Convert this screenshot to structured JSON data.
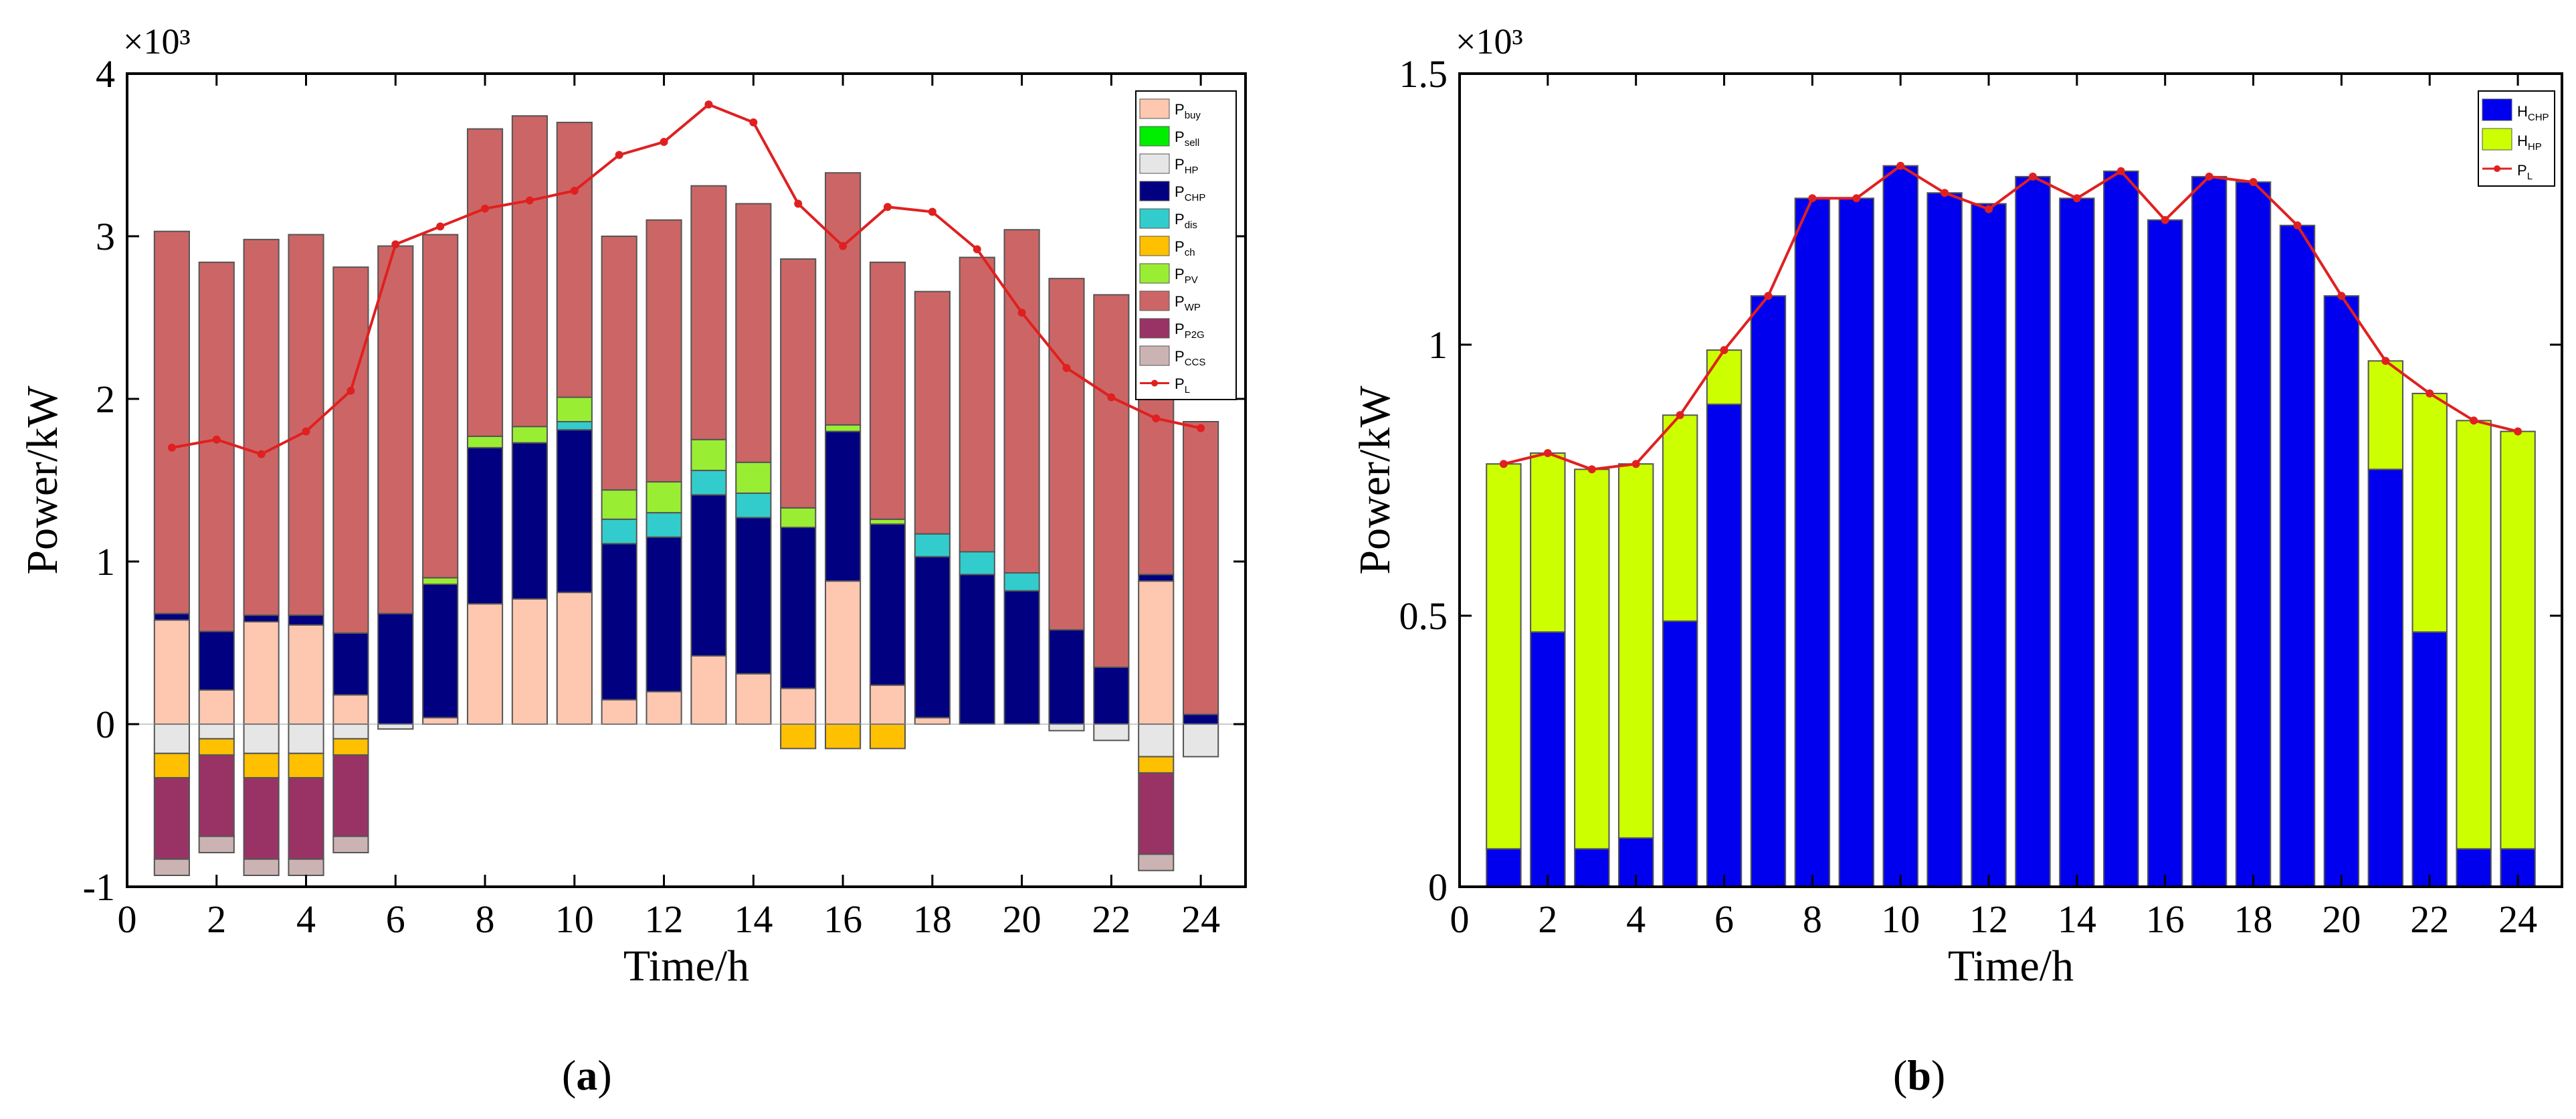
{
  "captions": [
    "(a)",
    "(b)"
  ],
  "caption_letters": [
    "a",
    "b"
  ],
  "chart_data": [
    {
      "type": "bar",
      "id": "a",
      "stacked": true,
      "title": "",
      "xlabel": "Time/h",
      "ylabel": "Power/kW",
      "scale_note": "×10³",
      "xlim": [
        0,
        25
      ],
      "ylim": [
        -1,
        4
      ],
      "xticks": [
        0,
        2,
        4,
        6,
        8,
        10,
        12,
        14,
        16,
        18,
        20,
        22,
        24
      ],
      "yticks": [
        -1,
        0,
        1,
        2,
        3,
        4
      ],
      "x": [
        1,
        2,
        3,
        4,
        5,
        6,
        7,
        8,
        9,
        10,
        11,
        12,
        13,
        14,
        15,
        16,
        17,
        18,
        19,
        20,
        21,
        22,
        23,
        24
      ],
      "legend_position": "top-right",
      "series": [
        {
          "name": "P",
          "sub": "buy",
          "color": "#FDC7B0",
          "values": [
            0.64,
            0.21,
            0.63,
            0.61,
            0.18,
            0,
            0.04,
            0.74,
            0.77,
            0.81,
            0.15,
            0.2,
            0.42,
            0.31,
            0.22,
            0.88,
            0.24,
            0.04,
            0,
            0,
            0,
            0,
            0.88,
            0
          ]
        },
        {
          "name": "P",
          "sub": "sell",
          "color": "#00EE00",
          "values": [
            0,
            0,
            0,
            0,
            0,
            0,
            0,
            0,
            0,
            0,
            0,
            0,
            0,
            0,
            0,
            0,
            0,
            0,
            0,
            0,
            0,
            0,
            0,
            0
          ]
        },
        {
          "name": "P",
          "sub": "HP",
          "color": "#E6E6E6",
          "values": [
            -0.18,
            -0.09,
            -0.18,
            -0.18,
            -0.09,
            -0.03,
            0,
            0,
            0,
            0,
            0,
            0,
            0,
            0,
            0,
            0,
            0,
            0,
            0,
            0,
            -0.04,
            -0.1,
            -0.2,
            -0.2
          ]
        },
        {
          "name": "P",
          "sub": "CHP",
          "color": "#000080",
          "values": [
            0.04,
            0.36,
            0.04,
            0.06,
            0.38,
            0.68,
            0.82,
            0.96,
            0.96,
            1.0,
            0.96,
            0.95,
            0.99,
            0.96,
            0.99,
            0.92,
            0.99,
            0.99,
            0.92,
            0.82,
            0.58,
            0.35,
            0.04,
            0.06
          ]
        },
        {
          "name": "P",
          "sub": "dis",
          "color": "#33CCCC",
          "values": [
            0,
            0,
            0,
            0,
            0,
            0,
            0,
            0,
            0,
            0.05,
            0.15,
            0.15,
            0.15,
            0.15,
            0,
            0,
            0,
            0.14,
            0.14,
            0.11,
            0,
            0,
            0,
            0
          ]
        },
        {
          "name": "P",
          "sub": "ch",
          "color": "#FFC000",
          "values": [
            -0.15,
            -0.1,
            -0.15,
            -0.15,
            -0.1,
            0,
            0,
            0,
            0,
            0,
            0,
            0,
            0,
            0,
            -0.15,
            -0.15,
            -0.15,
            0,
            0,
            0,
            0,
            0,
            -0.1,
            0
          ]
        },
        {
          "name": "P",
          "sub": "PV",
          "color": "#99EE33",
          "values": [
            0,
            0,
            0,
            0,
            0,
            0,
            0.04,
            0.07,
            0.1,
            0.15,
            0.18,
            0.19,
            0.19,
            0.19,
            0.12,
            0.04,
            0.03,
            0,
            0,
            0,
            0,
            0,
            0,
            0
          ]
        },
        {
          "name": "P",
          "sub": "WP",
          "color": "#CC6666",
          "values": [
            2.35,
            2.27,
            2.31,
            2.34,
            2.25,
            2.26,
            2.11,
            1.89,
            1.91,
            1.69,
            1.56,
            1.61,
            1.56,
            1.59,
            1.53,
            1.55,
            1.58,
            1.49,
            1.81,
            2.11,
            2.16,
            2.29,
            2.38,
            1.8
          ]
        },
        {
          "name": "P",
          "sub": "P2G",
          "color": "#993366",
          "values": [
            -0.5,
            -0.5,
            -0.5,
            -0.5,
            -0.5,
            0,
            0,
            0,
            0,
            0,
            0,
            0,
            0,
            0,
            0,
            0,
            0,
            0,
            0,
            0,
            0,
            0,
            -0.5,
            0
          ]
        },
        {
          "name": "P",
          "sub": "CCS",
          "color": "#CCB3B3",
          "values": [
            -0.1,
            -0.1,
            -0.1,
            -0.1,
            -0.1,
            0,
            0,
            0,
            0,
            0,
            0,
            0,
            0,
            0,
            0,
            0,
            0,
            0,
            0,
            0,
            0,
            0,
            -0.1,
            0
          ]
        }
      ],
      "line": {
        "name": "P",
        "sub": "L",
        "color": "#E02020",
        "values": [
          1.7,
          1.75,
          1.66,
          1.8,
          2.05,
          2.95,
          3.06,
          3.17,
          3.22,
          3.28,
          3.5,
          3.58,
          3.81,
          3.7,
          3.2,
          2.94,
          3.18,
          3.15,
          2.92,
          2.53,
          2.19,
          2.01,
          1.88,
          1.82
        ]
      }
    },
    {
      "type": "bar",
      "id": "b",
      "stacked": true,
      "title": "",
      "xlabel": "Time/h",
      "ylabel": "Power/kW",
      "scale_note": "×10³",
      "xlim": [
        0,
        25
      ],
      "ylim": [
        0,
        1.5
      ],
      "xticks": [
        0,
        2,
        4,
        6,
        8,
        10,
        12,
        14,
        16,
        18,
        20,
        22,
        24
      ],
      "yticks": [
        0,
        0.5,
        1,
        1.5
      ],
      "x": [
        1,
        2,
        3,
        4,
        5,
        6,
        7,
        8,
        9,
        10,
        11,
        12,
        13,
        14,
        15,
        16,
        17,
        18,
        19,
        20,
        21,
        22,
        23,
        24
      ],
      "legend_position": "top-right",
      "series": [
        {
          "name": "H",
          "sub": "CHP",
          "color": "#0000EE",
          "values": [
            0.07,
            0.47,
            0.07,
            0.09,
            0.49,
            0.89,
            1.09,
            1.27,
            1.27,
            1.33,
            1.28,
            1.26,
            1.31,
            1.27,
            1.32,
            1.23,
            1.31,
            1.3,
            1.22,
            1.09,
            0.77,
            0.47,
            0.07,
            0.07
          ]
        },
        {
          "name": "H",
          "sub": "HP",
          "color": "#CCFF00",
          "values": [
            0.71,
            0.33,
            0.7,
            0.69,
            0.38,
            0.1,
            0,
            0,
            0,
            0,
            0,
            0,
            0,
            0,
            0,
            0,
            0,
            0,
            0,
            0,
            0.2,
            0.44,
            0.79,
            0.77
          ]
        }
      ],
      "line": {
        "name": "P",
        "sub": "L",
        "color": "#E02020",
        "values": [
          0.78,
          0.8,
          0.77,
          0.78,
          0.87,
          0.99,
          1.09,
          1.27,
          1.27,
          1.33,
          1.28,
          1.25,
          1.31,
          1.27,
          1.32,
          1.23,
          1.31,
          1.3,
          1.22,
          1.09,
          0.97,
          0.91,
          0.86,
          0.84
        ]
      }
    }
  ]
}
